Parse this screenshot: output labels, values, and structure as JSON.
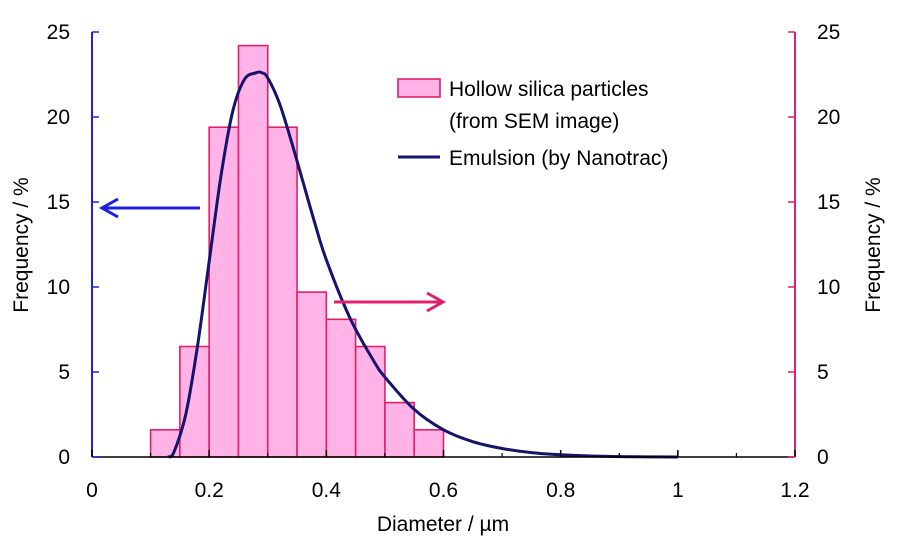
{
  "chart_data": {
    "type": "bar",
    "xlabel": "Diameter / µm",
    "ylabel_left": "Frequency / %",
    "ylabel_right": "Frequency / %",
    "xlim": [
      0,
      1.2
    ],
    "ylim_left": [
      0,
      25
    ],
    "ylim_right": [
      0,
      25
    ],
    "x_ticks": [
      "0",
      "0.2",
      "0.4",
      "0.6",
      "0.8",
      "1",
      "1.2"
    ],
    "y_ticks_left": [
      "0",
      "5",
      "10",
      "15",
      "20",
      "25"
    ],
    "y_ticks_right": [
      "0",
      "5",
      "10",
      "15",
      "20",
      "25"
    ],
    "grid": false,
    "legend_position": "top-right",
    "series": [
      {
        "name": "Hollow silica particles\n(from SEM image)",
        "legend_lines": [
          "Hollow silica particles",
          "(from SEM image)"
        ],
        "kind": "histogram",
        "axis": "right",
        "bin_edges": [
          0.1,
          0.15,
          0.2,
          0.25,
          0.3,
          0.35,
          0.4,
          0.45,
          0.5,
          0.55,
          0.6
        ],
        "values": [
          1.6,
          6.5,
          19.4,
          24.2,
          19.4,
          9.7,
          8.1,
          6.5,
          3.2,
          1.6
        ],
        "fill_color": "#ffb3e6",
        "stroke_color": "#e0206a"
      },
      {
        "name": "Emulsion (by Nanotrac)",
        "legend_lines": [
          "Emulsion (by Nanotrac)"
        ],
        "kind": "line",
        "axis": "left",
        "x": [
          0.13,
          0.14,
          0.16,
          0.18,
          0.2,
          0.22,
          0.24,
          0.26,
          0.28,
          0.29,
          0.3,
          0.32,
          0.34,
          0.36,
          0.38,
          0.4,
          0.44,
          0.48,
          0.5,
          0.55,
          0.6,
          0.65,
          0.7,
          0.75,
          0.8,
          0.85,
          0.9,
          0.95,
          1.0
        ],
        "y": [
          0,
          0.3,
          2.5,
          6.5,
          11.5,
          16.5,
          20.3,
          22.2,
          22.6,
          22.6,
          22.3,
          20.8,
          18.6,
          16.2,
          13.8,
          11.6,
          8.2,
          5.7,
          4.7,
          2.8,
          1.6,
          0.9,
          0.5,
          0.26,
          0.13,
          0.06,
          0.02,
          0.01,
          0
        ],
        "color": "#14146e"
      }
    ],
    "annotations": [
      {
        "kind": "arrow",
        "direction": "left",
        "refers_to_axis": "left",
        "color": "#1f1fe0"
      },
      {
        "kind": "arrow",
        "direction": "right",
        "refers_to_axis": "right",
        "color": "#e0206a"
      }
    ],
    "colors": {
      "left_axis": "#1f1fe0",
      "right_axis": "#e0206a",
      "bottom_axis": "#000000"
    }
  }
}
